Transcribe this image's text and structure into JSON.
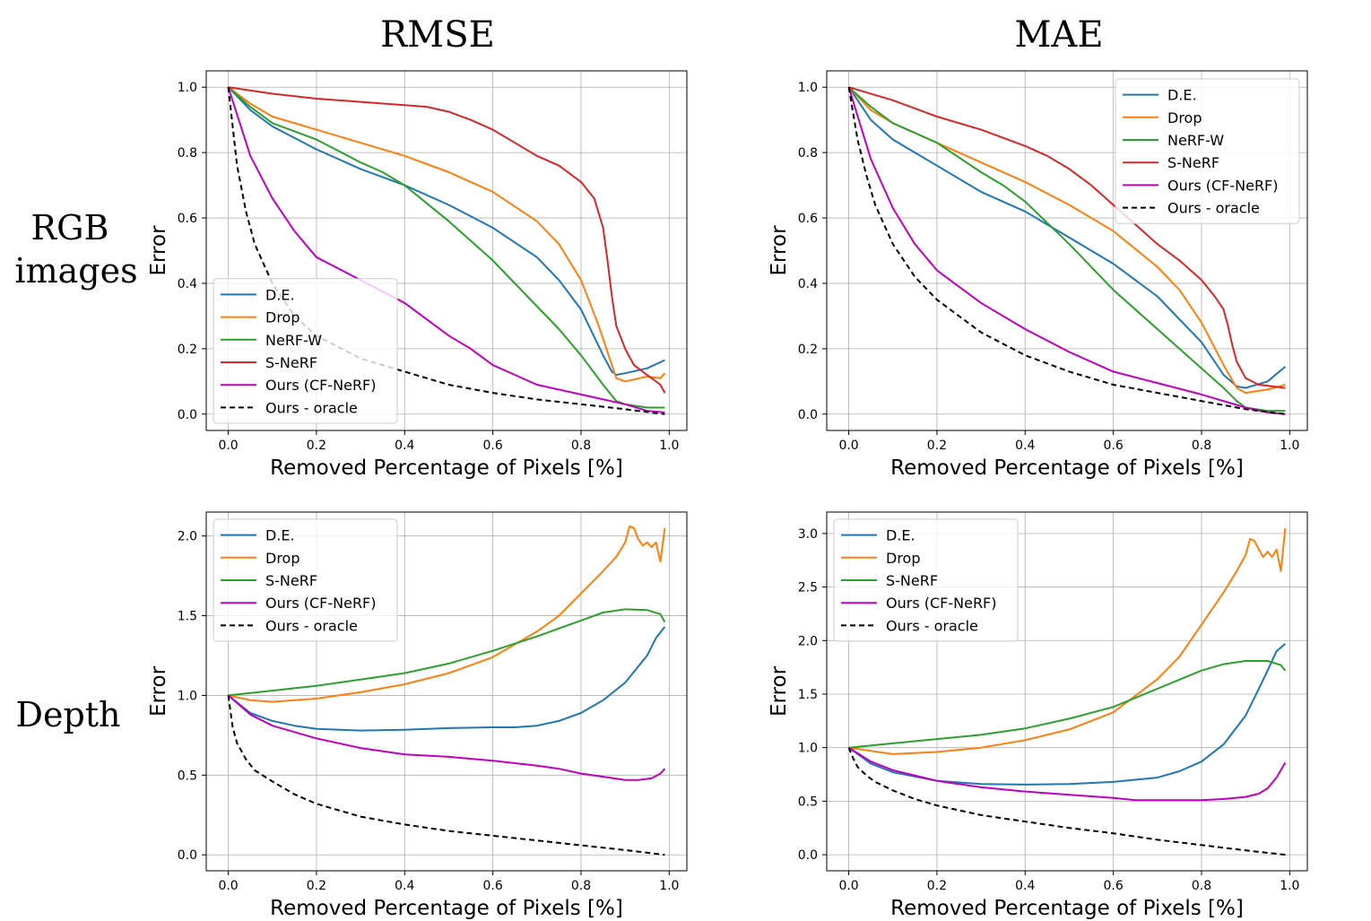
{
  "figure": {
    "col_titles": [
      "RMSE",
      "MAE"
    ],
    "row_labels": [
      [
        "RGB",
        "images"
      ],
      [
        "Depth"
      ]
    ]
  },
  "colors": {
    "D.E.": "#1f77b4",
    "Drop": "#ff7f0e",
    "NeRF-W": "#2ca02c",
    "S-NeRF-rgb": "#d62728",
    "S-NeRF-depth": "#2ca02c",
    "Ours (CF-NeRF)": "#c000c0",
    "Ours - oracle": "#000000"
  },
  "chart_data": [
    {
      "type": "line",
      "id": "rgb-rmse",
      "xlabel": "Removed Percentage of Pixels [%]",
      "ylabel": "Error",
      "xlim": [
        -0.05,
        1.04
      ],
      "ylim": [
        -0.05,
        1.05
      ],
      "xticks": [
        0.0,
        0.2,
        0.4,
        0.6,
        0.8,
        1.0
      ],
      "yticks": [
        0.0,
        0.2,
        0.4,
        0.6,
        0.8,
        1.0
      ],
      "ytick_labels": [
        "0.0",
        "0.2",
        "0.4",
        "0.6",
        "0.8",
        "1.0"
      ],
      "legend": "lower-left",
      "series": [
        {
          "name": "D.E.",
          "color": "#1f77b4",
          "dash": false,
          "x": [
            0,
            0.05,
            0.1,
            0.2,
            0.3,
            0.4,
            0.5,
            0.6,
            0.7,
            0.75,
            0.8,
            0.85,
            0.87,
            0.88,
            0.9,
            0.95,
            0.99
          ],
          "y": [
            1.0,
            0.93,
            0.88,
            0.81,
            0.75,
            0.7,
            0.64,
            0.57,
            0.48,
            0.41,
            0.32,
            0.18,
            0.13,
            0.12,
            0.125,
            0.14,
            0.165
          ]
        },
        {
          "name": "Drop",
          "color": "#ff7f0e",
          "dash": false,
          "x": [
            0,
            0.05,
            0.1,
            0.2,
            0.3,
            0.4,
            0.5,
            0.6,
            0.7,
            0.75,
            0.8,
            0.84,
            0.87,
            0.88,
            0.9,
            0.95,
            0.98,
            0.99
          ],
          "y": [
            1.0,
            0.95,
            0.91,
            0.87,
            0.83,
            0.79,
            0.74,
            0.68,
            0.59,
            0.52,
            0.41,
            0.27,
            0.15,
            0.11,
            0.1,
            0.115,
            0.11,
            0.125
          ]
        },
        {
          "name": "NeRF-W",
          "color": "#2ca02c",
          "dash": false,
          "x": [
            0,
            0.05,
            0.1,
            0.2,
            0.3,
            0.35,
            0.4,
            0.5,
            0.6,
            0.65,
            0.7,
            0.75,
            0.8,
            0.85,
            0.88,
            0.9,
            0.95,
            0.99
          ],
          "y": [
            1.0,
            0.94,
            0.89,
            0.84,
            0.77,
            0.74,
            0.7,
            0.59,
            0.47,
            0.4,
            0.33,
            0.26,
            0.18,
            0.09,
            0.04,
            0.03,
            0.02,
            0.02
          ]
        },
        {
          "name": "S-NeRF",
          "color": "#d62728",
          "dash": false,
          "x": [
            0,
            0.1,
            0.2,
            0.3,
            0.4,
            0.45,
            0.5,
            0.55,
            0.6,
            0.65,
            0.7,
            0.75,
            0.8,
            0.83,
            0.85,
            0.86,
            0.87,
            0.88,
            0.9,
            0.92,
            0.94,
            0.96,
            0.98,
            0.99
          ],
          "y": [
            1.0,
            0.98,
            0.965,
            0.955,
            0.945,
            0.94,
            0.925,
            0.9,
            0.87,
            0.83,
            0.79,
            0.76,
            0.71,
            0.66,
            0.57,
            0.47,
            0.36,
            0.27,
            0.2,
            0.15,
            0.13,
            0.11,
            0.09,
            0.065
          ]
        },
        {
          "name": "Ours (CF-NeRF)",
          "color": "#c000c0",
          "dash": false,
          "x": [
            0,
            0.05,
            0.1,
            0.15,
            0.2,
            0.3,
            0.4,
            0.5,
            0.55,
            0.6,
            0.65,
            0.7,
            0.8,
            0.9,
            0.95,
            0.99
          ],
          "y": [
            1.0,
            0.79,
            0.66,
            0.56,
            0.48,
            0.41,
            0.34,
            0.24,
            0.2,
            0.15,
            0.12,
            0.09,
            0.06,
            0.03,
            0.01,
            0.005
          ]
        },
        {
          "name": "Ours - oracle",
          "color": "#000000",
          "dash": true,
          "x": [
            0,
            0.01,
            0.02,
            0.04,
            0.06,
            0.1,
            0.15,
            0.2,
            0.3,
            0.4,
            0.5,
            0.6,
            0.7,
            0.8,
            0.9,
            0.99
          ],
          "y": [
            1.0,
            0.88,
            0.76,
            0.62,
            0.52,
            0.4,
            0.3,
            0.24,
            0.17,
            0.13,
            0.09,
            0.065,
            0.045,
            0.03,
            0.015,
            0.0
          ]
        }
      ]
    },
    {
      "type": "line",
      "id": "rgb-mae",
      "xlabel": "Removed Percentage of Pixels [%]",
      "ylabel": "Error",
      "xlim": [
        -0.05,
        1.04
      ],
      "ylim": [
        -0.05,
        1.05
      ],
      "xticks": [
        0.0,
        0.2,
        0.4,
        0.6,
        0.8,
        1.0
      ],
      "yticks": [
        0.0,
        0.2,
        0.4,
        0.6,
        0.8,
        1.0
      ],
      "ytick_labels": [
        "0.0",
        "0.2",
        "0.4",
        "0.6",
        "0.8",
        "1.0"
      ],
      "legend": "top-right",
      "series": [
        {
          "name": "D.E.",
          "color": "#1f77b4",
          "dash": false,
          "x": [
            0,
            0.05,
            0.1,
            0.2,
            0.3,
            0.4,
            0.5,
            0.6,
            0.7,
            0.8,
            0.85,
            0.88,
            0.9,
            0.95,
            0.99
          ],
          "y": [
            1.0,
            0.9,
            0.84,
            0.76,
            0.68,
            0.62,
            0.54,
            0.46,
            0.36,
            0.22,
            0.12,
            0.085,
            0.08,
            0.1,
            0.145
          ]
        },
        {
          "name": "Drop",
          "color": "#ff7f0e",
          "dash": false,
          "x": [
            0,
            0.05,
            0.1,
            0.2,
            0.3,
            0.4,
            0.5,
            0.6,
            0.7,
            0.75,
            0.8,
            0.85,
            0.88,
            0.9,
            0.95,
            0.99
          ],
          "y": [
            1.0,
            0.93,
            0.89,
            0.83,
            0.77,
            0.71,
            0.64,
            0.56,
            0.45,
            0.38,
            0.28,
            0.15,
            0.08,
            0.065,
            0.075,
            0.09
          ]
        },
        {
          "name": "NeRF-W",
          "color": "#2ca02c",
          "dash": false,
          "x": [
            0,
            0.05,
            0.1,
            0.2,
            0.3,
            0.35,
            0.4,
            0.5,
            0.6,
            0.7,
            0.75,
            0.8,
            0.85,
            0.88,
            0.9,
            0.95,
            0.99
          ],
          "y": [
            1.0,
            0.94,
            0.89,
            0.83,
            0.74,
            0.7,
            0.65,
            0.52,
            0.38,
            0.26,
            0.2,
            0.14,
            0.08,
            0.04,
            0.02,
            0.01,
            0.01
          ]
        },
        {
          "name": "S-NeRF",
          "color": "#d62728",
          "dash": false,
          "x": [
            0,
            0.1,
            0.2,
            0.3,
            0.4,
            0.45,
            0.5,
            0.55,
            0.6,
            0.65,
            0.7,
            0.75,
            0.8,
            0.83,
            0.85,
            0.86,
            0.87,
            0.88,
            0.9,
            0.93,
            0.96,
            0.99
          ],
          "y": [
            1.0,
            0.96,
            0.91,
            0.87,
            0.82,
            0.79,
            0.75,
            0.7,
            0.64,
            0.58,
            0.52,
            0.47,
            0.41,
            0.36,
            0.32,
            0.27,
            0.21,
            0.16,
            0.11,
            0.09,
            0.085,
            0.08
          ]
        },
        {
          "name": "Ours (CF-NeRF)",
          "color": "#c000c0",
          "dash": false,
          "x": [
            0,
            0.05,
            0.1,
            0.15,
            0.2,
            0.3,
            0.4,
            0.5,
            0.6,
            0.7,
            0.8,
            0.9,
            0.95,
            0.99
          ],
          "y": [
            1.0,
            0.78,
            0.63,
            0.52,
            0.44,
            0.34,
            0.26,
            0.19,
            0.13,
            0.095,
            0.06,
            0.02,
            0.005,
            0.0
          ]
        },
        {
          "name": "Ours - oracle",
          "color": "#000000",
          "dash": true,
          "x": [
            0,
            0.01,
            0.02,
            0.04,
            0.06,
            0.1,
            0.15,
            0.2,
            0.3,
            0.4,
            0.5,
            0.6,
            0.7,
            0.8,
            0.9,
            0.99
          ],
          "y": [
            1.0,
            0.92,
            0.84,
            0.73,
            0.64,
            0.52,
            0.42,
            0.35,
            0.25,
            0.18,
            0.13,
            0.09,
            0.065,
            0.04,
            0.015,
            0.0
          ]
        }
      ]
    },
    {
      "type": "line",
      "id": "depth-rmse",
      "xlabel": "Removed Percentage of Pixels [%]",
      "ylabel": "Error",
      "xlim": [
        -0.05,
        1.04
      ],
      "ylim": [
        -0.1,
        2.15
      ],
      "xticks": [
        0.0,
        0.2,
        0.4,
        0.6,
        0.8,
        1.0
      ],
      "yticks": [
        0.0,
        0.5,
        1.0,
        1.5,
        2.0
      ],
      "ytick_labels": [
        "0.0",
        "0.5",
        "1.0",
        "1.5",
        "2.0"
      ],
      "legend": "top-left",
      "series": [
        {
          "name": "D.E.",
          "color": "#1f77b4",
          "dash": false,
          "x": [
            0,
            0.05,
            0.1,
            0.15,
            0.2,
            0.3,
            0.4,
            0.5,
            0.6,
            0.65,
            0.7,
            0.75,
            0.8,
            0.85,
            0.9,
            0.95,
            0.97,
            0.99
          ],
          "y": [
            1.0,
            0.89,
            0.84,
            0.81,
            0.79,
            0.78,
            0.785,
            0.795,
            0.8,
            0.8,
            0.81,
            0.84,
            0.89,
            0.97,
            1.08,
            1.25,
            1.36,
            1.43
          ]
        },
        {
          "name": "Drop",
          "color": "#ff7f0e",
          "dash": false,
          "x": [
            0,
            0.05,
            0.1,
            0.2,
            0.3,
            0.4,
            0.5,
            0.6,
            0.7,
            0.75,
            0.8,
            0.85,
            0.88,
            0.9,
            0.91,
            0.92,
            0.93,
            0.94,
            0.95,
            0.96,
            0.97,
            0.98,
            0.99
          ],
          "y": [
            1.0,
            0.97,
            0.96,
            0.98,
            1.02,
            1.07,
            1.14,
            1.24,
            1.4,
            1.5,
            1.64,
            1.78,
            1.87,
            1.96,
            2.06,
            2.05,
            1.98,
            1.94,
            1.96,
            1.93,
            1.96,
            1.84,
            2.05
          ]
        },
        {
          "name": "S-NeRF",
          "color": "#2ca02c",
          "dash": false,
          "x": [
            0,
            0.1,
            0.2,
            0.3,
            0.4,
            0.5,
            0.6,
            0.7,
            0.8,
            0.85,
            0.9,
            0.95,
            0.98,
            0.99
          ],
          "y": [
            1.0,
            1.03,
            1.06,
            1.1,
            1.14,
            1.2,
            1.28,
            1.37,
            1.47,
            1.52,
            1.54,
            1.535,
            1.51,
            1.46
          ]
        },
        {
          "name": "Ours (CF-NeRF)",
          "color": "#c000c0",
          "dash": false,
          "x": [
            0,
            0.05,
            0.1,
            0.2,
            0.3,
            0.4,
            0.5,
            0.6,
            0.7,
            0.75,
            0.8,
            0.85,
            0.9,
            0.93,
            0.96,
            0.98,
            0.99
          ],
          "y": [
            1.0,
            0.88,
            0.81,
            0.73,
            0.67,
            0.63,
            0.615,
            0.59,
            0.56,
            0.54,
            0.51,
            0.49,
            0.47,
            0.47,
            0.48,
            0.51,
            0.54
          ]
        },
        {
          "name": "Ours - oracle",
          "color": "#000000",
          "dash": true,
          "x": [
            0,
            0.01,
            0.02,
            0.04,
            0.06,
            0.1,
            0.15,
            0.2,
            0.3,
            0.4,
            0.5,
            0.6,
            0.7,
            0.8,
            0.9,
            0.99
          ],
          "y": [
            1.0,
            0.8,
            0.7,
            0.6,
            0.53,
            0.46,
            0.38,
            0.32,
            0.24,
            0.19,
            0.15,
            0.12,
            0.09,
            0.06,
            0.03,
            0.0
          ]
        }
      ]
    },
    {
      "type": "line",
      "id": "depth-mae",
      "xlabel": "Removed Percentage of Pixels [%]",
      "ylabel": "Error",
      "xlim": [
        -0.05,
        1.04
      ],
      "ylim": [
        -0.15,
        3.2
      ],
      "xticks": [
        0.0,
        0.2,
        0.4,
        0.6,
        0.8,
        1.0
      ],
      "yticks": [
        0.0,
        0.5,
        1.0,
        1.5,
        2.0,
        2.5,
        3.0
      ],
      "ytick_labels": [
        "0.0",
        "0.5",
        "1.0",
        "1.5",
        "2.0",
        "2.5",
        "3.0"
      ],
      "legend": "top-left",
      "series": [
        {
          "name": "D.E.",
          "color": "#1f77b4",
          "dash": false,
          "x": [
            0,
            0.05,
            0.1,
            0.2,
            0.3,
            0.4,
            0.5,
            0.6,
            0.7,
            0.75,
            0.8,
            0.85,
            0.9,
            0.93,
            0.95,
            0.97,
            0.99
          ],
          "y": [
            1.0,
            0.85,
            0.77,
            0.69,
            0.66,
            0.655,
            0.66,
            0.68,
            0.72,
            0.78,
            0.87,
            1.03,
            1.3,
            1.55,
            1.72,
            1.9,
            1.97
          ]
        },
        {
          "name": "Drop",
          "color": "#ff7f0e",
          "dash": false,
          "x": [
            0,
            0.1,
            0.2,
            0.3,
            0.4,
            0.5,
            0.6,
            0.7,
            0.75,
            0.8,
            0.85,
            0.88,
            0.9,
            0.91,
            0.92,
            0.93,
            0.94,
            0.95,
            0.96,
            0.97,
            0.98,
            0.99
          ],
          "y": [
            1.0,
            0.94,
            0.96,
            1.0,
            1.07,
            1.17,
            1.33,
            1.64,
            1.85,
            2.15,
            2.45,
            2.65,
            2.8,
            2.95,
            2.93,
            2.85,
            2.78,
            2.83,
            2.78,
            2.85,
            2.65,
            3.05
          ]
        },
        {
          "name": "S-NeRF",
          "color": "#2ca02c",
          "dash": false,
          "x": [
            0,
            0.1,
            0.2,
            0.3,
            0.4,
            0.5,
            0.6,
            0.7,
            0.8,
            0.85,
            0.9,
            0.95,
            0.98,
            0.99
          ],
          "y": [
            1.0,
            1.04,
            1.08,
            1.12,
            1.18,
            1.27,
            1.38,
            1.55,
            1.72,
            1.78,
            1.81,
            1.81,
            1.77,
            1.72
          ]
        },
        {
          "name": "Ours (CF-NeRF)",
          "color": "#c000c0",
          "dash": false,
          "x": [
            0,
            0.05,
            0.1,
            0.2,
            0.3,
            0.4,
            0.5,
            0.6,
            0.65,
            0.7,
            0.8,
            0.85,
            0.9,
            0.93,
            0.95,
            0.97,
            0.99
          ],
          "y": [
            1.0,
            0.87,
            0.79,
            0.69,
            0.63,
            0.59,
            0.56,
            0.53,
            0.51,
            0.51,
            0.51,
            0.52,
            0.54,
            0.57,
            0.62,
            0.72,
            0.86
          ]
        },
        {
          "name": "Ours - oracle",
          "color": "#000000",
          "dash": true,
          "x": [
            0,
            0.01,
            0.02,
            0.04,
            0.06,
            0.1,
            0.15,
            0.2,
            0.3,
            0.4,
            0.5,
            0.6,
            0.7,
            0.8,
            0.9,
            0.99
          ],
          "y": [
            1.0,
            0.9,
            0.82,
            0.74,
            0.68,
            0.6,
            0.52,
            0.46,
            0.37,
            0.31,
            0.25,
            0.2,
            0.14,
            0.09,
            0.04,
            0.0
          ]
        }
      ]
    }
  ]
}
